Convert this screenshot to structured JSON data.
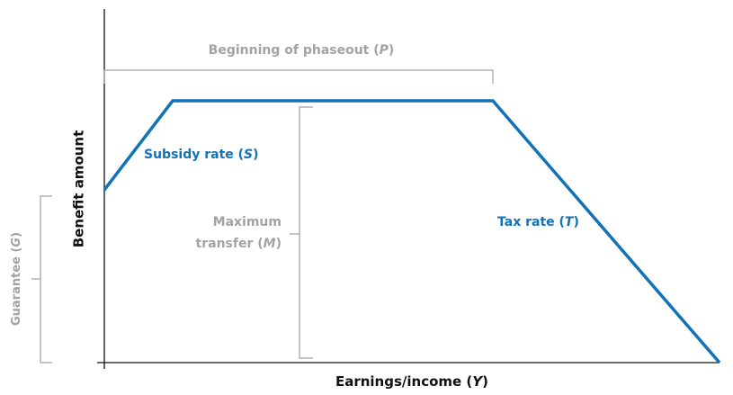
{
  "y_axis_label": "Benefit amount",
  "x_axis_label": [
    "Earnings/income (",
    "Y",
    ")"
  ],
  "phaseout_label": [
    "Beginning of phaseout (",
    "P",
    ")"
  ],
  "subsidy_label": [
    "Subsidy rate (",
    "S",
    ")"
  ],
  "tax_label": [
    "Tax rate (",
    "T",
    ")"
  ],
  "max_transfer_label": {
    "line1": "Maximum",
    "line2": [
      "transfer (",
      "M",
      ")"
    ]
  },
  "guarantee_label": [
    "Guarantee (",
    "G",
    ")"
  ]
}
